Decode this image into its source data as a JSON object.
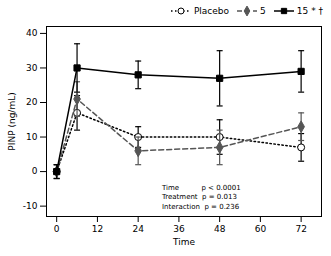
{
  "chart_data": {
    "type": "line",
    "xlabel": "Time",
    "ylabel": "PINP (ng/mL)",
    "x": [
      0,
      6,
      24,
      48,
      72
    ],
    "series": [
      {
        "name": "Placebo",
        "color": "#000000",
        "marker": "circle",
        "line_style": "dotted",
        "values": [
          0,
          17,
          10,
          10,
          7
        ],
        "errors": [
          2,
          5,
          3,
          5,
          4
        ]
      },
      {
        "name": "5",
        "color": "#555555",
        "marker": "diamond",
        "line_style": "dashed",
        "values": [
          0,
          21,
          6,
          7,
          13
        ],
        "errors": [
          2,
          5,
          4,
          5,
          4
        ]
      },
      {
        "name": "15 * †",
        "color": "#000000",
        "marker": "square",
        "line_style": "solid",
        "values": [
          0,
          30,
          28,
          27,
          29
        ],
        "errors": [
          2,
          7,
          4,
          8,
          6
        ]
      }
    ],
    "xlim": [
      -3,
      78
    ],
    "ylim": [
      -13,
      42
    ],
    "xticks": [
      0,
      12,
      24,
      36,
      48,
      60,
      72
    ],
    "yticks": [
      -10,
      0,
      10,
      20,
      30,
      40
    ],
    "annotations": [
      "Time          p < 0.0001\nTreatment  p = 0.013\nInteraction  p = 0.236"
    ],
    "legend": "upper right",
    "grid": false
  }
}
